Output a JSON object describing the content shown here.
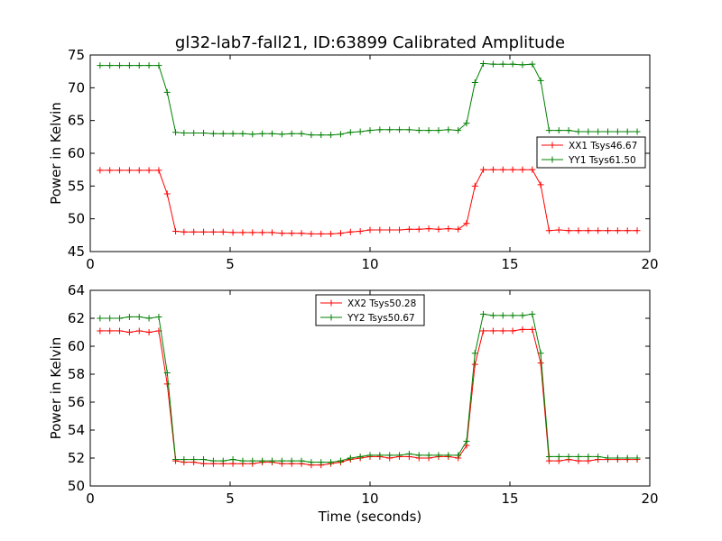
{
  "chart_data": {
    "title": "gl32-lab7-fall21, ID:63899 Calibrated Amplitude",
    "xlabel": "Time (seconds)",
    "subplots": [
      {
        "type": "line",
        "ylabel": "Power in Kelvin",
        "xlim": [
          0,
          20
        ],
        "ylim": [
          45,
          75
        ],
        "xticks": [
          "0",
          "5",
          "10",
          "15",
          "20"
        ],
        "yticks": [
          "45",
          "50",
          "55",
          "60",
          "65",
          "70",
          "75"
        ],
        "legend_placement": "center-right",
        "series": [
          {
            "name": "XX1 Tsys46.67",
            "color": "#ff0000",
            "x": [
              0.35,
              0.7,
              1.05,
              1.4,
              1.75,
              2.1,
              2.45,
              2.75,
              3.05,
              3.35,
              3.7,
              4.05,
              4.4,
              4.75,
              5.1,
              5.45,
              5.8,
              6.15,
              6.5,
              6.85,
              7.2,
              7.55,
              7.9,
              8.25,
              8.6,
              8.95,
              9.3,
              9.65,
              10.0,
              10.35,
              10.7,
              11.05,
              11.4,
              11.75,
              12.1,
              12.45,
              12.8,
              13.15,
              13.45,
              13.75,
              14.05,
              14.4,
              14.75,
              15.1,
              15.45,
              15.8,
              16.1,
              16.4,
              16.75,
              17.1,
              17.45,
              17.8,
              18.15,
              18.5,
              18.85,
              19.2,
              19.55
            ],
            "y": [
              57.4,
              57.4,
              57.4,
              57.4,
              57.4,
              57.4,
              57.4,
              53.8,
              48.1,
              48.0,
              48.0,
              48.0,
              48.0,
              48.0,
              47.9,
              47.9,
              47.9,
              47.9,
              47.9,
              47.8,
              47.8,
              47.8,
              47.7,
              47.7,
              47.7,
              47.8,
              48.0,
              48.1,
              48.3,
              48.3,
              48.3,
              48.3,
              48.4,
              48.4,
              48.5,
              48.4,
              48.5,
              48.4,
              49.3,
              55.0,
              57.5,
              57.5,
              57.5,
              57.5,
              57.5,
              57.5,
              55.2,
              48.2,
              48.3,
              48.2,
              48.2,
              48.2,
              48.2,
              48.2,
              48.2,
              48.2,
              48.2
            ]
          },
          {
            "name": "YY1 Tsys61.50",
            "color": "#008000",
            "x": [
              0.35,
              0.7,
              1.05,
              1.4,
              1.75,
              2.1,
              2.45,
              2.75,
              3.05,
              3.35,
              3.7,
              4.05,
              4.4,
              4.75,
              5.1,
              5.45,
              5.8,
              6.15,
              6.5,
              6.85,
              7.2,
              7.55,
              7.9,
              8.25,
              8.6,
              8.95,
              9.3,
              9.65,
              10.0,
              10.35,
              10.7,
              11.05,
              11.4,
              11.75,
              12.1,
              12.45,
              12.8,
              13.15,
              13.45,
              13.75,
              14.05,
              14.4,
              14.75,
              15.1,
              15.45,
              15.8,
              16.1,
              16.4,
              16.75,
              17.1,
              17.45,
              17.8,
              18.15,
              18.5,
              18.85,
              19.2,
              19.55
            ],
            "y": [
              73.4,
              73.4,
              73.4,
              73.4,
              73.4,
              73.4,
              73.4,
              69.3,
              63.2,
              63.1,
              63.1,
              63.1,
              63.0,
              63.0,
              63.0,
              63.0,
              62.9,
              63.0,
              63.0,
              62.9,
              63.0,
              63.0,
              62.8,
              62.8,
              62.8,
              62.9,
              63.2,
              63.3,
              63.5,
              63.6,
              63.6,
              63.6,
              63.6,
              63.5,
              63.5,
              63.5,
              63.6,
              63.5,
              64.6,
              70.8,
              73.7,
              73.6,
              73.6,
              73.6,
              73.5,
              73.6,
              71.1,
              63.5,
              63.5,
              63.5,
              63.3,
              63.3,
              63.3,
              63.3,
              63.3,
              63.3,
              63.3
            ]
          }
        ]
      },
      {
        "type": "line",
        "ylabel": "Power in Kelvin",
        "xlim": [
          0,
          20
        ],
        "ylim": [
          50,
          64
        ],
        "xticks": [
          "0",
          "5",
          "10",
          "15",
          "20"
        ],
        "yticks": [
          "50",
          "52",
          "54",
          "56",
          "58",
          "60",
          "62",
          "64"
        ],
        "legend_placement": "top-center",
        "series": [
          {
            "name": "XX2 Tsys50.28",
            "color": "#ff0000",
            "x": [
              0.35,
              0.7,
              1.05,
              1.4,
              1.75,
              2.1,
              2.45,
              2.75,
              3.05,
              3.35,
              3.7,
              4.05,
              4.4,
              4.75,
              5.1,
              5.45,
              5.8,
              6.15,
              6.5,
              6.85,
              7.2,
              7.55,
              7.9,
              8.25,
              8.6,
              8.95,
              9.3,
              9.65,
              10.0,
              10.35,
              10.7,
              11.05,
              11.4,
              11.75,
              12.1,
              12.45,
              12.8,
              13.15,
              13.45,
              13.75,
              14.05,
              14.4,
              14.75,
              15.1,
              15.45,
              15.8,
              16.1,
              16.4,
              16.75,
              17.1,
              17.45,
              17.8,
              18.15,
              18.5,
              18.85,
              19.2,
              19.55
            ],
            "y": [
              61.1,
              61.1,
              61.1,
              61.0,
              61.1,
              61.0,
              61.1,
              57.3,
              51.8,
              51.7,
              51.7,
              51.6,
              51.6,
              51.6,
              51.6,
              51.6,
              51.6,
              51.7,
              51.7,
              51.6,
              51.6,
              51.6,
              51.5,
              51.5,
              51.6,
              51.7,
              51.9,
              52.0,
              52.1,
              52.1,
              52.0,
              52.1,
              52.1,
              52.0,
              52.0,
              52.1,
              52.1,
              52.0,
              52.9,
              58.7,
              61.1,
              61.1,
              61.1,
              61.1,
              61.2,
              61.2,
              58.8,
              51.8,
              51.8,
              51.9,
              51.8,
              51.8,
              51.9,
              51.9,
              51.9,
              51.9,
              51.9
            ]
          },
          {
            "name": "YY2 Tsys50.67",
            "color": "#008000",
            "x": [
              0.35,
              0.7,
              1.05,
              1.4,
              1.75,
              2.1,
              2.45,
              2.75,
              3.05,
              3.35,
              3.7,
              4.05,
              4.4,
              4.75,
              5.1,
              5.45,
              5.8,
              6.15,
              6.5,
              6.85,
              7.2,
              7.55,
              7.9,
              8.25,
              8.6,
              8.95,
              9.3,
              9.65,
              10.0,
              10.35,
              10.7,
              11.05,
              11.4,
              11.75,
              12.1,
              12.45,
              12.8,
              13.15,
              13.45,
              13.75,
              14.05,
              14.4,
              14.75,
              15.1,
              15.45,
              15.8,
              16.1,
              16.4,
              16.75,
              17.1,
              17.45,
              17.8,
              18.15,
              18.5,
              18.85,
              19.2,
              19.55
            ],
            "y": [
              62.0,
              62.0,
              62.0,
              62.1,
              62.1,
              62.0,
              62.1,
              58.1,
              51.9,
              51.9,
              51.9,
              51.9,
              51.8,
              51.8,
              51.9,
              51.8,
              51.8,
              51.8,
              51.8,
              51.8,
              51.8,
              51.8,
              51.7,
              51.7,
              51.7,
              51.8,
              52.0,
              52.1,
              52.2,
              52.2,
              52.2,
              52.2,
              52.3,
              52.2,
              52.2,
              52.2,
              52.2,
              52.2,
              53.2,
              59.5,
              62.3,
              62.2,
              62.2,
              62.2,
              62.2,
              62.3,
              59.5,
              52.1,
              52.1,
              52.1,
              52.1,
              52.1,
              52.1,
              52.0,
              52.0,
              52.0,
              52.0
            ]
          }
        ]
      }
    ]
  }
}
